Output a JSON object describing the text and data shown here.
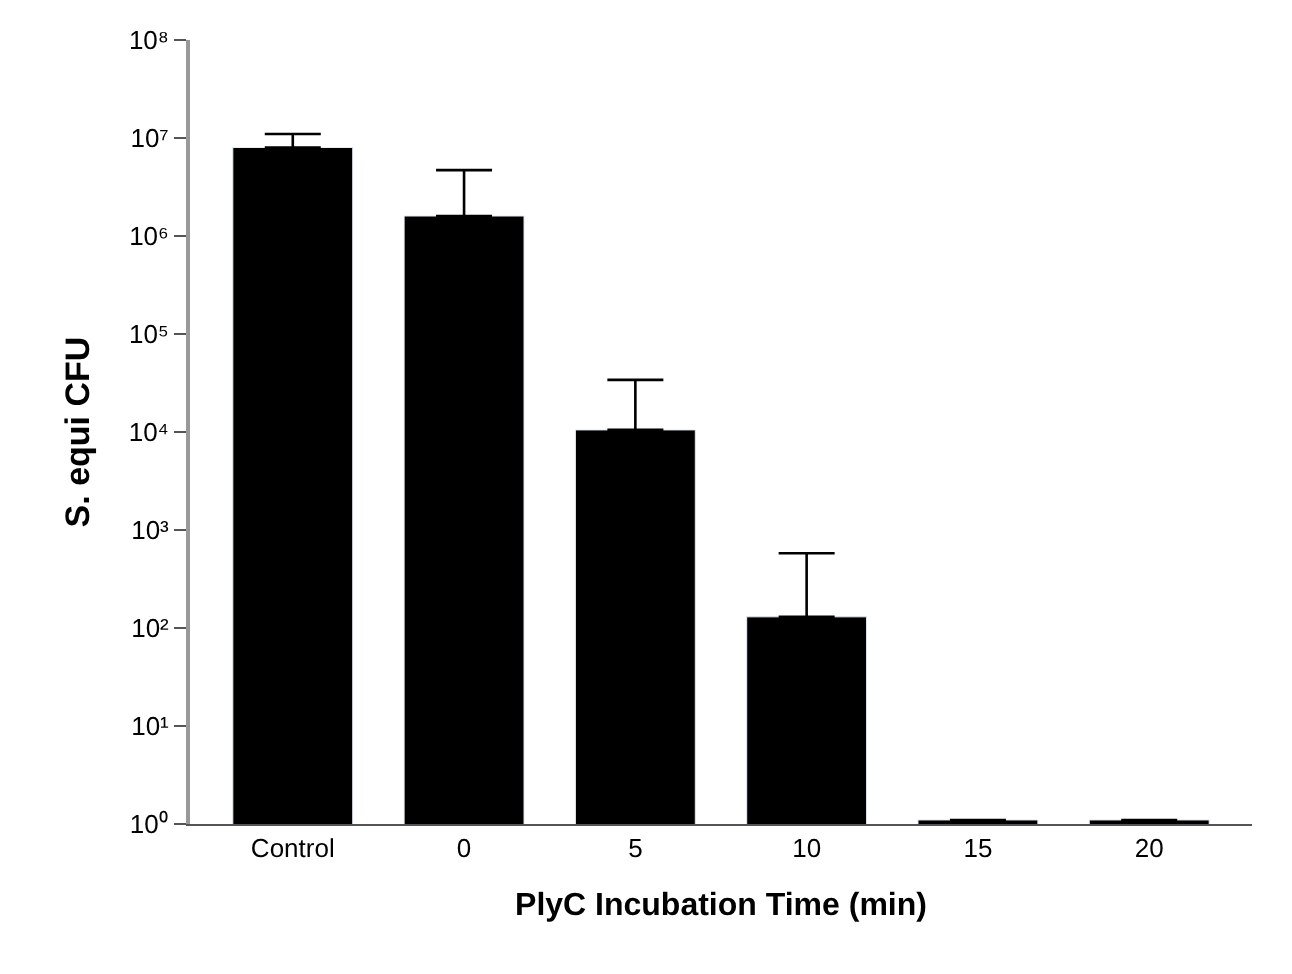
{
  "chart_data": {
    "type": "bar",
    "xlabel": "PlyC Incubation Time (min)",
    "ylabel": "S. equi CFU",
    "categories": [
      "Control",
      "0",
      "5",
      "10",
      "15",
      "20"
    ],
    "values": [
      8000000,
      1600000,
      10500,
      130,
      1.1,
      1.1
    ],
    "errors": [
      [
        8000000,
        11000000
      ],
      [
        1600000,
        4700000
      ],
      [
        10500,
        34000
      ],
      [
        130,
        580
      ],
      null,
      null
    ],
    "color": "#000000",
    "log": true,
    "ylim": [
      1,
      100000000
    ],
    "yticks": [
      {
        "value": 1,
        "label": "10⁰"
      },
      {
        "value": 10,
        "label": "10¹"
      },
      {
        "value": 100,
        "label": "10²"
      },
      {
        "value": 1000,
        "label": "10³"
      },
      {
        "value": 10000,
        "label": "10⁴"
      },
      {
        "value": 100000,
        "label": "10⁵"
      },
      {
        "value": 1000000,
        "label": "10⁶"
      },
      {
        "value": 10000000,
        "label": "10⁷"
      },
      {
        "value": 100000000,
        "label": "10⁸"
      }
    ],
    "legend": false
  }
}
